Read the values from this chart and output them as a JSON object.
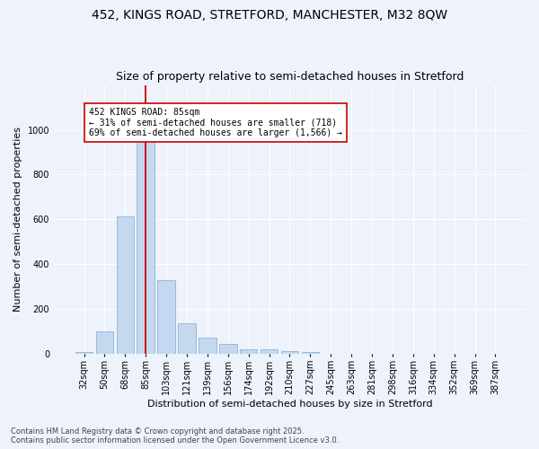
{
  "title1": "452, KINGS ROAD, STRETFORD, MANCHESTER, M32 8QW",
  "title2": "Size of property relative to semi-detached houses in Stretford",
  "xlabel": "Distribution of semi-detached houses by size in Stretford",
  "ylabel": "Number of semi-detached properties",
  "categories": [
    "32sqm",
    "50sqm",
    "68sqm",
    "85sqm",
    "103sqm",
    "121sqm",
    "139sqm",
    "156sqm",
    "174sqm",
    "192sqm",
    "210sqm",
    "227sqm",
    "245sqm",
    "263sqm",
    "281sqm",
    "298sqm",
    "316sqm",
    "334sqm",
    "352sqm",
    "369sqm",
    "387sqm"
  ],
  "values": [
    8,
    100,
    612,
    950,
    330,
    138,
    72,
    45,
    22,
    22,
    12,
    8,
    0,
    0,
    0,
    0,
    0,
    0,
    0,
    0,
    0
  ],
  "bar_color": "#c5d8f0",
  "bar_edge_color": "#8ab4d8",
  "vline_x_index": 3,
  "vline_color": "#cc0000",
  "annotation_text": "452 KINGS ROAD: 85sqm\n← 31% of semi-detached houses are smaller (718)\n69% of semi-detached houses are larger (1,566) →",
  "annotation_box_color": "#ffffff",
  "annotation_box_edge": "#cc0000",
  "ylim": [
    0,
    1200
  ],
  "yticks": [
    0,
    200,
    400,
    600,
    800,
    1000
  ],
  "footnote1": "Contains HM Land Registry data © Crown copyright and database right 2025.",
  "footnote2": "Contains public sector information licensed under the Open Government Licence v3.0.",
  "title_fontsize": 10,
  "subtitle_fontsize": 9,
  "xlabel_fontsize": 8,
  "ylabel_fontsize": 8,
  "tick_fontsize": 7,
  "annotation_fontsize": 7,
  "footnote_fontsize": 6,
  "background_color": "#eef2fb",
  "plot_bg_color": "#eef2fb",
  "grid_color": "#ffffff"
}
